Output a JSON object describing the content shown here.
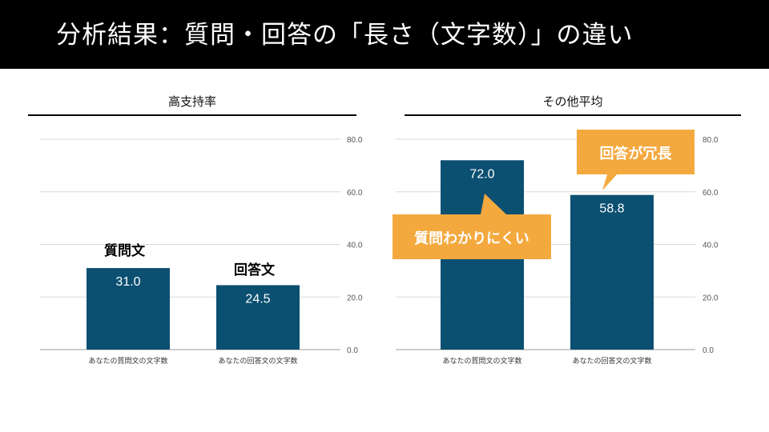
{
  "header": {
    "title": "分析結果：質問・回答の「長さ（文字数）」の違い"
  },
  "colors": {
    "bar": "#0b4f71",
    "callout": "#f4a93f",
    "header_bg": "#000000",
    "grid": "#d9d9d9"
  },
  "chart_data": [
    {
      "type": "bar",
      "title": "高支持率",
      "categories": [
        "あなたの質問文の文字数",
        "あなたの回答文の文字数"
      ],
      "values": [
        31.0,
        24.5
      ],
      "value_labels": [
        "31.0",
        "24.5"
      ],
      "ylim": [
        0,
        80
      ],
      "yticks": [
        0,
        20,
        40,
        60,
        80
      ],
      "ytick_labels": [
        "0.0",
        "20.0",
        "40.0",
        "60.0",
        "80.0"
      ],
      "grid": true,
      "annotations": [
        "質問文",
        "回答文"
      ]
    },
    {
      "type": "bar",
      "title": "その他平均",
      "categories": [
        "あなたの質問文の文字数",
        "あなたの回答文の文字数"
      ],
      "values": [
        72.0,
        58.8
      ],
      "value_labels": [
        "72.0",
        "58.8"
      ],
      "ylim": [
        0,
        80
      ],
      "yticks": [
        0,
        20,
        40,
        60,
        80
      ],
      "ytick_labels": [
        "0.0",
        "20.0",
        "40.0",
        "60.0",
        "80.0"
      ],
      "grid": true,
      "callouts": [
        "質問わかりにくい",
        "回答が冗長"
      ]
    }
  ]
}
